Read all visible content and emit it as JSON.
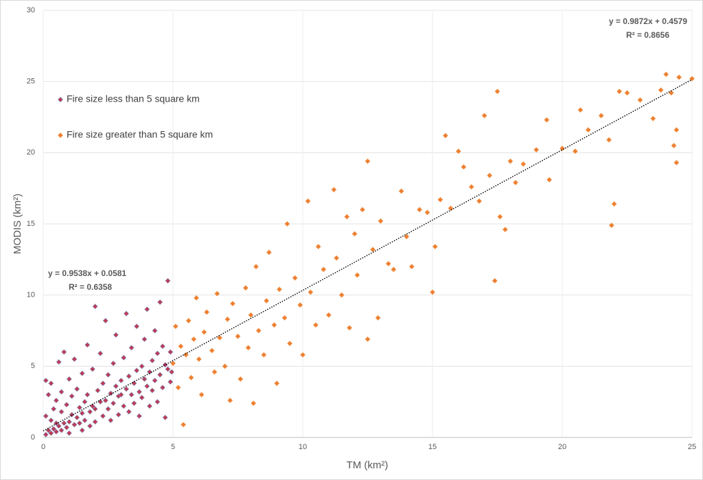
{
  "chart_data": {
    "type": "scatter",
    "x_label": "TM (km²)",
    "y_label": "MODIS (km²)",
    "xlim": [
      0,
      25
    ],
    "ylim": [
      0,
      30
    ],
    "xticks": [
      0,
      5,
      10,
      15,
      20,
      25
    ],
    "yticks": [
      0,
      5,
      10,
      15,
      20,
      25,
      30
    ],
    "grid": true,
    "legend": "upper-left",
    "series": [
      {
        "name": "Fire size less than 5 square km",
        "color": "#c0394f",
        "edge": "#8a8fc0",
        "x": [
          0.1,
          0.1,
          0.1,
          0.2,
          0.2,
          0.3,
          0.3,
          0.3,
          0.4,
          0.4,
          0.5,
          0.5,
          0.5,
          0.6,
          0.6,
          0.7,
          0.7,
          0.7,
          0.8,
          0.8,
          0.9,
          0.9,
          1.0,
          1.0,
          1.0,
          1.1,
          1.1,
          1.2,
          1.2,
          1.3,
          1.3,
          1.4,
          1.4,
          1.5,
          1.5,
          1.5,
          1.6,
          1.6,
          1.7,
          1.7,
          1.8,
          1.8,
          1.9,
          1.9,
          2.0,
          2.0,
          2.0,
          2.1,
          2.2,
          2.2,
          2.3,
          2.3,
          2.4,
          2.4,
          2.5,
          2.5,
          2.6,
          2.6,
          2.7,
          2.7,
          2.8,
          2.8,
          2.9,
          2.9,
          3.0,
          3.0,
          3.1,
          3.1,
          3.2,
          3.2,
          3.3,
          3.3,
          3.4,
          3.4,
          3.5,
          3.5,
          3.6,
          3.6,
          3.7,
          3.7,
          3.8,
          3.8,
          3.9,
          3.9,
          4.0,
          4.0,
          4.1,
          4.1,
          4.2,
          4.2,
          4.3,
          4.3,
          4.4,
          4.4,
          4.5,
          4.5,
          4.6,
          4.6,
          4.7,
          4.7,
          4.8,
          4.8,
          4.9,
          4.9,
          4.95
        ],
        "y": [
          0.2,
          1.5,
          4.0,
          0.5,
          3.0,
          0.3,
          1.2,
          3.8,
          0.6,
          2.0,
          0.4,
          1.0,
          2.6,
          0.8,
          5.3,
          0.5,
          1.8,
          3.2,
          1.0,
          6.0,
          0.7,
          2.3,
          1.1,
          4.1,
          0.3,
          1.6,
          2.9,
          0.9,
          5.5,
          1.4,
          3.4,
          1.0,
          2.1,
          1.7,
          4.5,
          0.5,
          2.5,
          1.2,
          3.0,
          6.5,
          1.8,
          0.8,
          2.2,
          4.8,
          2.0,
          9.2,
          1.1,
          3.3,
          2.5,
          5.9,
          1.5,
          3.8,
          8.2,
          2.6,
          2.0,
          4.4,
          3.1,
          1.2,
          5.2,
          2.4,
          3.6,
          7.2,
          2.9,
          1.6,
          4.0,
          3.0,
          2.2,
          5.6,
          3.4,
          8.7,
          4.3,
          1.8,
          3.0,
          6.3,
          3.8,
          2.4,
          4.7,
          7.8,
          3.2,
          1.5,
          5.0,
          2.8,
          4.1,
          6.9,
          3.6,
          9.0,
          4.6,
          2.2,
          5.4,
          3.3,
          7.5,
          4.0,
          2.5,
          5.9,
          4.4,
          9.5,
          3.5,
          6.4,
          5.1,
          1.4,
          4.8,
          11.0,
          3.9,
          6.0,
          4.6
        ]
      },
      {
        "name": "Fire size greater than 5 square km",
        "color": "#ed7d31",
        "edge": "#f4a460",
        "x": [
          5.0,
          5.1,
          5.2,
          5.3,
          5.4,
          5.5,
          5.6,
          5.7,
          5.8,
          5.9,
          6.0,
          6.1,
          6.2,
          6.3,
          6.5,
          6.6,
          6.7,
          6.8,
          7.0,
          7.1,
          7.2,
          7.3,
          7.5,
          7.6,
          7.8,
          7.9,
          8.0,
          8.1,
          8.2,
          8.3,
          8.5,
          8.6,
          8.7,
          8.9,
          9.0,
          9.1,
          9.3,
          9.4,
          9.5,
          9.7,
          9.9,
          10.0,
          10.2,
          10.3,
          10.5,
          10.6,
          10.8,
          11.0,
          11.2,
          11.3,
          11.5,
          11.7,
          11.8,
          12.0,
          12.1,
          12.3,
          12.5,
          12.5,
          12.7,
          12.9,
          13.0,
          13.3,
          13.5,
          13.8,
          14.0,
          14.2,
          14.5,
          14.8,
          15.0,
          15.1,
          15.3,
          15.5,
          15.7,
          16.0,
          16.2,
          16.5,
          16.8,
          17.0,
          17.2,
          17.4,
          17.5,
          17.6,
          17.8,
          18.0,
          18.2,
          18.5,
          19.0,
          19.4,
          19.5,
          20.0,
          20.5,
          20.7,
          21.0,
          21.5,
          21.8,
          22.0,
          21.9,
          22.2,
          22.5,
          23.0,
          23.5,
          23.8,
          24.0,
          24.2,
          24.3,
          24.4,
          24.4,
          24.5,
          25.0
        ],
        "y": [
          5.2,
          7.8,
          3.5,
          6.4,
          0.9,
          5.8,
          8.2,
          4.2,
          6.9,
          9.8,
          5.5,
          3.0,
          7.4,
          8.8,
          6.1,
          4.6,
          10.1,
          7.0,
          5.0,
          8.3,
          2.6,
          9.4,
          7.1,
          4.1,
          10.5,
          6.3,
          8.6,
          2.4,
          12.0,
          7.5,
          5.8,
          9.6,
          13.0,
          7.9,
          3.8,
          10.4,
          8.4,
          15.0,
          6.6,
          11.2,
          9.3,
          5.8,
          16.6,
          10.2,
          7.9,
          13.4,
          11.8,
          8.6,
          17.4,
          12.6,
          10.0,
          15.5,
          7.7,
          14.3,
          11.4,
          16.0,
          19.4,
          6.9,
          13.2,
          8.4,
          15.2,
          12.2,
          11.8,
          17.3,
          14.1,
          12.0,
          16.0,
          15.8,
          10.2,
          13.4,
          16.7,
          21.2,
          16.1,
          20.1,
          19.0,
          17.6,
          16.6,
          22.6,
          18.4,
          11.0,
          24.3,
          15.5,
          14.6,
          19.4,
          17.9,
          19.2,
          20.2,
          22.3,
          18.1,
          20.3,
          20.1,
          23.0,
          21.6,
          22.6,
          20.9,
          16.4,
          14.9,
          24.3,
          24.2,
          23.7,
          22.4,
          24.4,
          25.5,
          24.2,
          20.5,
          19.3,
          21.6,
          25.3,
          25.2
        ]
      }
    ],
    "trendline": {
      "x": [
        0,
        25
      ],
      "y": [
        0.46,
        25.14
      ],
      "color": "#000000",
      "style": "dotted"
    },
    "annotations": [
      {
        "text": "y = 0.9538x + 0.0581"
      },
      {
        "text": "R² = 0.6358"
      },
      {
        "text": "y = 0.9872x + 0.4579"
      },
      {
        "text": "R² = 0.8656"
      }
    ]
  }
}
